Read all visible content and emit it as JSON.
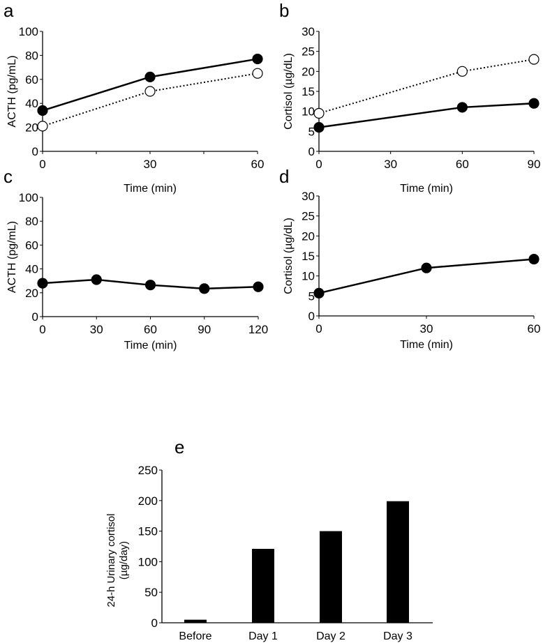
{
  "chart_data": [
    {
      "panel": "a",
      "type": "line",
      "xlabel": "Time (min)",
      "ylabel": "ACTH (pg/mL)",
      "xlim": [
        0,
        60
      ],
      "ylim": [
        0,
        100
      ],
      "xticks": [
        0,
        30,
        60
      ],
      "yticks": [
        0,
        20,
        40,
        60,
        80,
        100
      ],
      "series": [
        {
          "name": "filled",
          "marker": "filled",
          "dash": false,
          "x": [
            0,
            30,
            60
          ],
          "y": [
            34,
            62,
            77
          ]
        },
        {
          "name": "open",
          "marker": "open",
          "dash": true,
          "x": [
            0,
            30,
            60
          ],
          "y": [
            21,
            50,
            65
          ]
        }
      ]
    },
    {
      "panel": "b",
      "type": "line",
      "xlabel": "Time (min)",
      "ylabel": "Cortisol (µg/dL)",
      "xlim": [
        0,
        90
      ],
      "ylim": [
        0,
        30
      ],
      "xticks": [
        0,
        30,
        60,
        90
      ],
      "yticks": [
        0,
        5,
        10,
        15,
        20,
        25,
        30
      ],
      "series": [
        {
          "name": "filled",
          "marker": "filled",
          "dash": false,
          "x": [
            0,
            60,
            90
          ],
          "y": [
            6,
            11,
            12
          ]
        },
        {
          "name": "open",
          "marker": "open",
          "dash": true,
          "x": [
            0,
            60,
            90
          ],
          "y": [
            9.5,
            20,
            23
          ]
        }
      ]
    },
    {
      "panel": "c",
      "type": "line",
      "xlabel": "Time (min)",
      "ylabel": "ACTH (pg/mL)",
      "xlim": [
        0,
        120
      ],
      "ylim": [
        0,
        100
      ],
      "xticks": [
        0,
        30,
        60,
        90,
        120
      ],
      "yticks": [
        0,
        20,
        40,
        60,
        80,
        100
      ],
      "series": [
        {
          "name": "filled",
          "marker": "filled",
          "dash": false,
          "x": [
            0,
            30,
            60,
            90,
            120
          ],
          "y": [
            28,
            31,
            26.5,
            23.5,
            25
          ]
        }
      ]
    },
    {
      "panel": "d",
      "type": "line",
      "xlabel": "Time (min)",
      "ylabel": "Cortisol (µg/dL)",
      "xlim": [
        0,
        60
      ],
      "ylim": [
        0,
        30
      ],
      "xticks": [
        0,
        30,
        60
      ],
      "yticks": [
        0,
        5,
        10,
        15,
        20,
        25,
        30
      ],
      "series": [
        {
          "name": "filled",
          "marker": "filled",
          "dash": false,
          "x": [
            0,
            30,
            60
          ],
          "y": [
            5.7,
            12,
            14.2
          ]
        }
      ]
    },
    {
      "panel": "e",
      "type": "bar",
      "ylabel": [
        "24-h Urinary cortisol",
        "(µg/day)"
      ],
      "ylim": [
        0,
        250
      ],
      "yticks": [
        0,
        50,
        100,
        150,
        200,
        250
      ],
      "categories": [
        "Before",
        "Day 1",
        "Day 2",
        "Day 3"
      ],
      "values": [
        5,
        121,
        150,
        199
      ]
    }
  ]
}
